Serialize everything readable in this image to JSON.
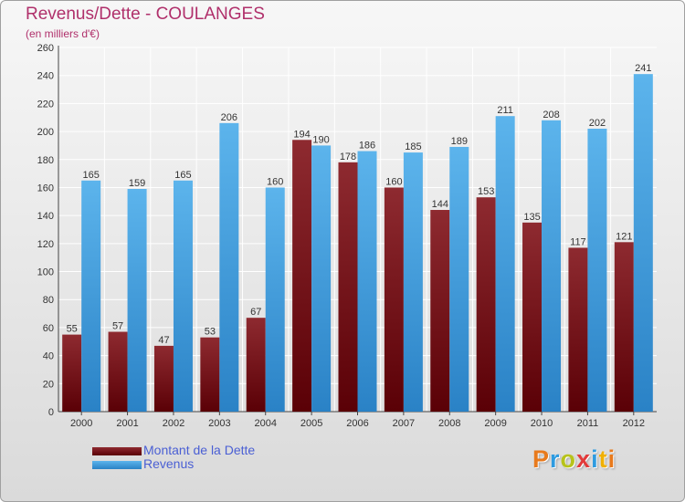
{
  "header": {
    "title": "Revenus/Dette - COULANGES",
    "subtitle": "(en milliers d'€)"
  },
  "legend": {
    "items": [
      {
        "label": "Montant de la Dette",
        "color": "#6e0d14"
      },
      {
        "label": "Revenus",
        "color": "#3d9ad8"
      }
    ]
  },
  "logo": {
    "text": "Proxiti",
    "colors": [
      "#e87a1c",
      "#2e9be0",
      "#b7c31b",
      "#e23a3a",
      "#2e9be0",
      "#f0b000",
      "#e87a1c"
    ]
  },
  "chart_data": {
    "type": "bar",
    "title": "Revenus/Dette - COULANGES",
    "subtitle": "(en milliers d'€)",
    "xlabel": "",
    "ylabel": "",
    "categories": [
      "2000",
      "2001",
      "2002",
      "2003",
      "2004",
      "2005",
      "2006",
      "2007",
      "2008",
      "2009",
      "2010",
      "2011",
      "2012"
    ],
    "series": [
      {
        "name": "Montant de la Dette",
        "color": "#6e0d14",
        "values": [
          55,
          57,
          47,
          53,
          67,
          194,
          178,
          160,
          144,
          153,
          135,
          117,
          121
        ]
      },
      {
        "name": "Revenus",
        "color": "#3d9ad8",
        "values": [
          165,
          159,
          165,
          206,
          160,
          190,
          186,
          185,
          189,
          211,
          208,
          202,
          241
        ]
      }
    ],
    "ylim": [
      0,
      260
    ],
    "yticks": [
      0,
      20,
      40,
      60,
      80,
      100,
      120,
      140,
      160,
      180,
      200,
      220,
      240,
      260
    ],
    "grid": true,
    "legend_position": "bottom-left"
  }
}
